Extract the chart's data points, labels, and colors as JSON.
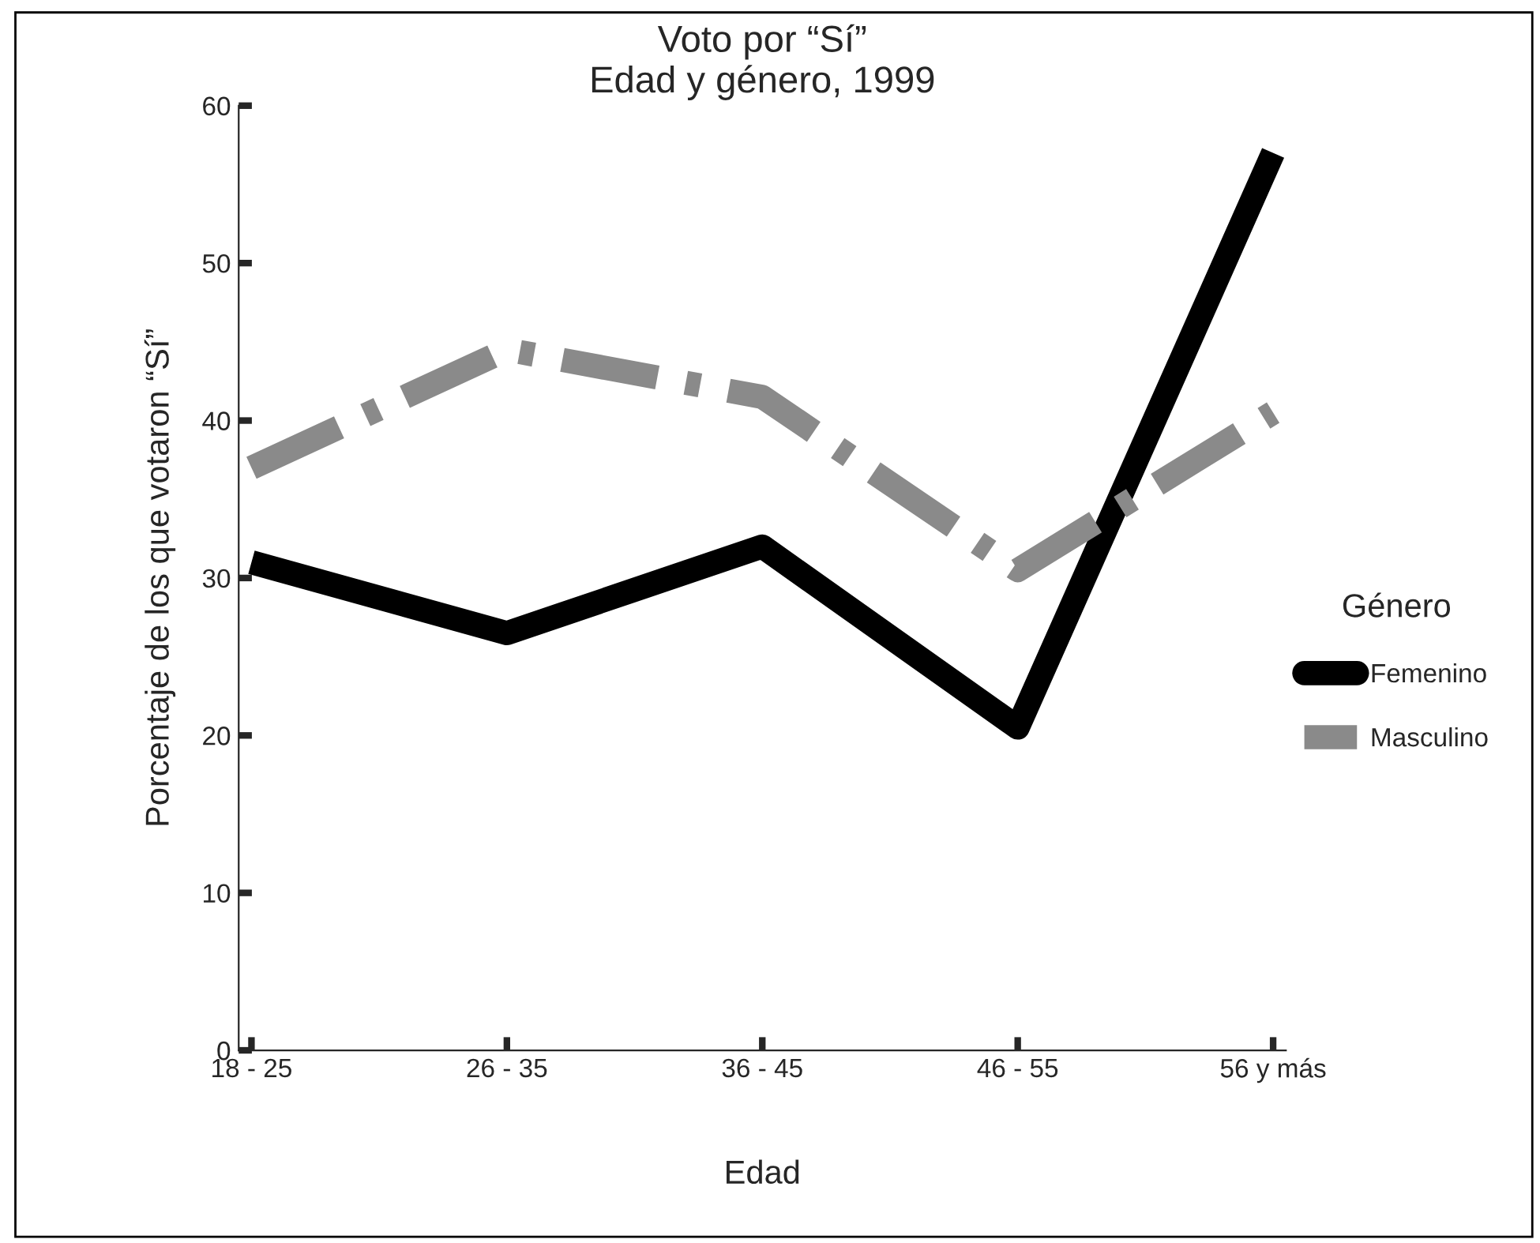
{
  "chart_data": {
    "type": "line",
    "title": "Voto por “Sí”\nEdad y género, 1999",
    "xlabel": "Edad",
    "ylabel": "Porcentaje de los que votaron “Sí”",
    "categories": [
      "18 - 25",
      "26 - 35",
      "36 - 45",
      "46 - 55",
      "56 y más"
    ],
    "series": [
      {
        "name": "Femenino",
        "color": "#000000",
        "line_style": "solid",
        "values": [
          31,
          26.5,
          32,
          20.5,
          57
        ]
      },
      {
        "name": "Masculino",
        "color": "#8a8a8a",
        "line_style": "dashdot",
        "values": [
          37,
          44.5,
          41.5,
          30.5,
          40.5
        ]
      }
    ],
    "ylim": [
      0,
      60
    ],
    "yticks": [
      0,
      10,
      20,
      30,
      40,
      50,
      60
    ],
    "legend": "right",
    "legend_title": "Género",
    "grid": false,
    "marker": "none"
  }
}
